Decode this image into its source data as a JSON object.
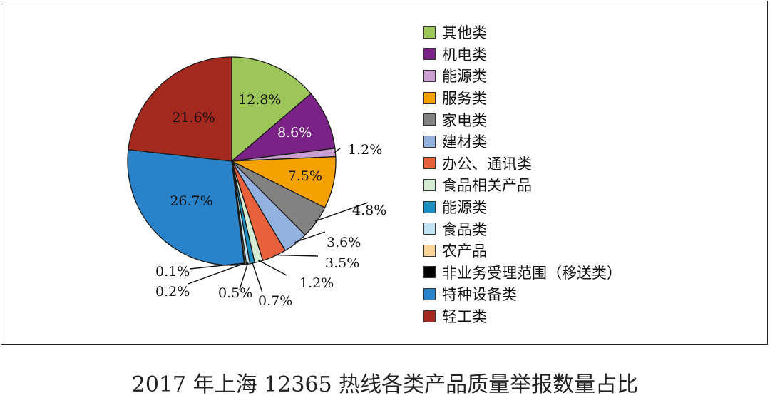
{
  "caption": "2017 年上海 12365 热线各类产品质量举报数量占比",
  "chart_data": {
    "type": "pie",
    "title": "",
    "legend_placement": "right",
    "slices": [
      {
        "name": "其他类",
        "value": 12.8,
        "label": "12.8%",
        "color": "#9dc65a"
      },
      {
        "name": "机电类",
        "value": 8.6,
        "label": "8.6%",
        "color": "#7a2285"
      },
      {
        "name": "能源类",
        "value": 1.2,
        "label": "1.2%",
        "color": "#c9a0cf"
      },
      {
        "name": "服务类",
        "value": 7.5,
        "label": "7.5%",
        "color": "#f5a100"
      },
      {
        "name": "家电类",
        "value": 4.8,
        "label": "4.8%",
        "color": "#828282"
      },
      {
        "name": "建材类",
        "value": 3.6,
        "label": "3.6%",
        "color": "#93b1de"
      },
      {
        "name": "办公、通讯类",
        "value": 3.5,
        "label": "3.5%",
        "color": "#e8603c"
      },
      {
        "name": "食品相关产品",
        "value": 1.2,
        "label": "1.2%",
        "color": "#d4ebd4"
      },
      {
        "name": "能源类",
        "value": 0.7,
        "label": "0.7%",
        "color": "#1c8fc2"
      },
      {
        "name": "食品类",
        "value": 0.5,
        "label": "0.5%",
        "color": "#bfe3f2"
      },
      {
        "name": "农产品",
        "value": 0.2,
        "label": "0.2%",
        "color": "#fcd49a"
      },
      {
        "name": "非业务受理范围（移送类）",
        "value": 0.1,
        "label": "0.1%",
        "color": "#000000"
      },
      {
        "name": "特种设备类",
        "value": 26.7,
        "label": "26.7%",
        "color": "#2a82c8"
      },
      {
        "name": "轻工类",
        "value": 21.6,
        "label": "21.6%",
        "color": "#a42a20"
      }
    ]
  }
}
